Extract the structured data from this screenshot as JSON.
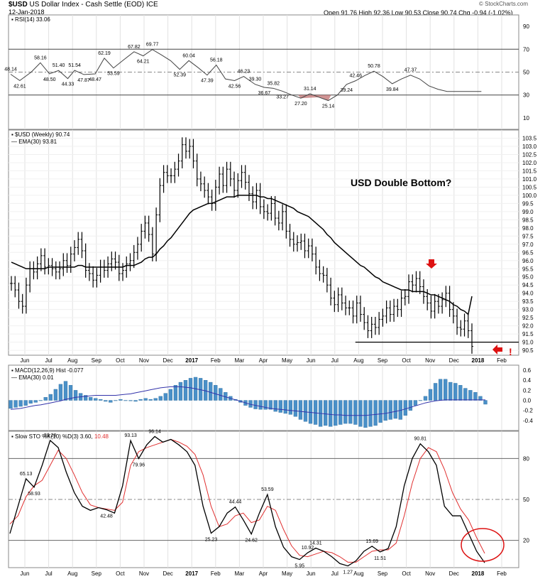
{
  "header": {
    "symbol": "$USD",
    "desc": "US Dollar Index - Cash Settle (EOD)",
    "exchange": "ICE",
    "date": "12-Jan-2018",
    "quote": "Open 91.76  High 92.36  Low 90.53  Close 90.74  Chg -0.94 (-1.02%)",
    "brand": "© StockCharts.com"
  },
  "panels": {
    "rsi_label": "RSI(14) 33.06",
    "price_label": "$USD (Weekly) 90.74",
    "ema_label": "EMA(30) 93.81",
    "macd_label": "MACD(12,26,9) Hist -0.077",
    "macd_ema_label": "EMA(30) 0.01",
    "sto_label_a": "Slow STO %K(10) %D(3) 3.60,",
    "sto_label_b": "10.48"
  },
  "annotations": {
    "double_bottom": "USD Double Bottom?",
    "exclaim": "!"
  },
  "colors": {
    "price_bar": "#000000",
    "ema": "#000000",
    "macd_hist": "#4a90c8",
    "macd_line": "#3333aa",
    "sto_k": "#000000",
    "sto_d": "#e03030",
    "rsi_oversold_fill": "#c07070",
    "arrow": "#dd1111",
    "circle": "#dd1111"
  },
  "chart_data": [
    {
      "type": "line",
      "title": "RSI(14) 33.06",
      "ylim": [
        0,
        100
      ],
      "y_ticks": [
        10,
        30,
        50,
        70,
        90
      ],
      "x": [
        0,
        4,
        9,
        13,
        17,
        21,
        25,
        28,
        32,
        37,
        41,
        45,
        49,
        54,
        58,
        62,
        66,
        70,
        74,
        78,
        82,
        86,
        90,
        94,
        98,
        102,
        107,
        111,
        115,
        119,
        123,
        127,
        131,
        135,
        139,
        143,
        147,
        151,
        155,
        159,
        163,
        167,
        171,
        175,
        179,
        183,
        187,
        191,
        195,
        199,
        203,
        206
      ],
      "values": [
        48.14,
        42.61,
        50,
        58.16,
        48.5,
        51.4,
        44.33,
        51.54,
        47.87,
        48.47,
        62.19,
        53.59,
        60,
        67.82,
        64.21,
        69.77,
        65,
        60,
        52.39,
        60.04,
        54,
        47.39,
        56.18,
        44,
        42.56,
        46.23,
        39.3,
        36.67,
        35.82,
        33.27,
        30,
        27.2,
        31.14,
        28,
        25.14,
        30,
        39.24,
        42.46,
        47,
        50.78,
        46,
        39.84,
        44,
        47.37,
        44,
        38,
        35,
        33.06,
        33.06,
        33.06,
        33.06,
        33.06
      ],
      "point_labels": [
        {
          "i": 0,
          "text": "48.14",
          "pos": "above"
        },
        {
          "i": 1,
          "text": "42.61",
          "pos": "below"
        },
        {
          "i": 3,
          "text": "58.16",
          "pos": "above"
        },
        {
          "i": 4,
          "text": "48.50",
          "pos": "below"
        },
        {
          "i": 5,
          "text": "51.40",
          "pos": "above"
        },
        {
          "i": 6,
          "text": "44.33",
          "pos": "below"
        },
        {
          "i": 7,
          "text": "51.54",
          "pos": "above"
        },
        {
          "i": 8,
          "text": "47.87",
          "pos": "below"
        },
        {
          "i": 9,
          "text": "48.47",
          "pos": "below"
        },
        {
          "i": 10,
          "text": "62.19",
          "pos": "above"
        },
        {
          "i": 11,
          "text": "53.59",
          "pos": "below"
        },
        {
          "i": 13,
          "text": "67.82",
          "pos": "above"
        },
        {
          "i": 14,
          "text": "64.21",
          "pos": "below"
        },
        {
          "i": 15,
          "text": "69.77",
          "pos": "above"
        },
        {
          "i": 18,
          "text": "52.39",
          "pos": "below"
        },
        {
          "i": 19,
          "text": "60.04",
          "pos": "above"
        },
        {
          "i": 21,
          "text": "47.39",
          "pos": "below"
        },
        {
          "i": 22,
          "text": "56.18",
          "pos": "above"
        },
        {
          "i": 24,
          "text": "42.56",
          "pos": "below"
        },
        {
          "i": 25,
          "text": "46.23",
          "pos": "above"
        },
        {
          "i": 26,
          "text": "39.30",
          "pos": "above"
        },
        {
          "i": 27,
          "text": "36.67",
          "pos": "below"
        },
        {
          "i": 28,
          "text": "35.82",
          "pos": "above"
        },
        {
          "i": 29,
          "text": "33.27",
          "pos": "below"
        },
        {
          "i": 31,
          "text": "27.20",
          "pos": "below"
        },
        {
          "i": 32,
          "text": "31.14",
          "pos": "above"
        },
        {
          "i": 34,
          "text": "25.14",
          "pos": "below"
        },
        {
          "i": 36,
          "text": "39.24",
          "pos": "below"
        },
        {
          "i": 37,
          "text": "42.46",
          "pos": "above"
        },
        {
          "i": 39,
          "text": "50.78",
          "pos": "above"
        },
        {
          "i": 41,
          "text": "39.84",
          "pos": "below"
        },
        {
          "i": 43,
          "text": "47.37",
          "pos": "above"
        }
      ]
    },
    {
      "type": "bar",
      "title": "$USD (Weekly) 90.74",
      "ylim": [
        90.2,
        104.0
      ],
      "y_ticks": [
        90.5,
        91.0,
        91.5,
        92.0,
        92.5,
        93.0,
        93.5,
        94.0,
        94.5,
        95.0,
        95.5,
        96.0,
        96.5,
        97.0,
        97.5,
        98.0,
        98.5,
        99.0,
        99.5,
        100.0,
        100.5,
        101.0,
        101.5,
        102.0,
        102.5,
        103.0,
        103.5
      ],
      "x_labels": [
        "Jun",
        "Jul",
        "Aug",
        "Sep",
        "Oct",
        "Nov",
        "Dec",
        "2017",
        "Feb",
        "Mar",
        "Apr",
        "May",
        "Jun",
        "Jul",
        "Aug",
        "Sep",
        "Oct",
        "Nov",
        "Dec",
        "2018",
        "Feb"
      ],
      "ohlc_close": [
        94.6,
        94.2,
        93.5,
        93.2,
        94.5,
        95.5,
        95.3,
        95.8,
        96.3,
        95.6,
        95.7,
        95.5,
        95.3,
        95.5,
        96.0,
        95.7,
        96.4,
        96.8,
        97.3,
        96.6,
        95.4,
        95.2,
        94.8,
        95.1,
        95.6,
        95.4,
        95.8,
        96.1,
        95.9,
        95.2,
        95.4,
        95.8,
        96.0,
        96.5,
        97.0,
        97.8,
        98.3,
        97.6,
        96.4,
        98.8,
        100.6,
        101.4,
        101.2,
        101.2,
        101.6,
        102.1,
        103.1,
        102.7,
        103.0,
        102.1,
        101.0,
        100.7,
        100.3,
        99.9,
        99.5,
        100.5,
        101.3,
        100.6,
        101.6,
        101.0,
        100.3,
        100.9,
        101.4,
        100.8,
        100.1,
        99.6,
        100.3,
        99.3,
        99.0,
        98.9,
        99.5,
        98.6,
        98.3,
        99.0,
        97.8,
        97.3,
        97.0,
        97.1,
        97.2,
        96.6,
        96.9,
        96.4,
        95.6,
        95.2,
        95.1,
        94.5,
        93.7,
        93.3,
        93.9,
        93.4,
        93.1,
        93.1,
        92.6,
        93.4,
        92.7,
        92.2,
        91.7,
        92.1,
        91.9,
        92.4,
        92.6,
        93.1,
        92.7,
        93.2,
        93.0,
        93.7,
        93.8,
        94.7,
        94.5,
        94.9,
        94.4,
        93.8,
        93.4,
        92.9,
        93.5,
        93.2,
        93.6,
        94.0,
        93.0,
        92.6,
        91.9,
        91.8,
        92.3,
        91.7,
        90.74
      ],
      "ema30": [
        95.9,
        95.8,
        95.7,
        95.6,
        95.5,
        95.5,
        95.5,
        95.5,
        95.5,
        95.5,
        95.6,
        95.6,
        95.6,
        95.6,
        95.6,
        95.6,
        95.6,
        95.6,
        95.7,
        95.7,
        95.6,
        95.6,
        95.6,
        95.6,
        95.6,
        95.6,
        95.6,
        95.6,
        95.6,
        95.6,
        95.6,
        95.7,
        95.7,
        95.7,
        95.8,
        95.9,
        96.1,
        96.2,
        96.2,
        96.4,
        96.7,
        96.9,
        97.2,
        97.4,
        97.7,
        98.0,
        98.3,
        98.6,
        98.9,
        99.1,
        99.2,
        99.3,
        99.4,
        99.5,
        99.5,
        99.6,
        99.7,
        99.8,
        99.9,
        99.9,
        99.9,
        100.0,
        100.0,
        100.0,
        100.0,
        100.0,
        100.0,
        99.9,
        99.9,
        99.8,
        99.8,
        99.7,
        99.6,
        99.5,
        99.4,
        99.3,
        99.2,
        99.0,
        98.9,
        98.8,
        98.7,
        98.5,
        98.3,
        98.1,
        97.9,
        97.6,
        97.4,
        97.1,
        96.9,
        96.7,
        96.5,
        96.3,
        96.1,
        95.9,
        95.7,
        95.6,
        95.4,
        95.2,
        95.0,
        94.9,
        94.7,
        94.6,
        94.5,
        94.4,
        94.3,
        94.2,
        94.2,
        94.2,
        94.1,
        94.1,
        94.1,
        94.1,
        94.0,
        93.9,
        93.9,
        93.8,
        93.7,
        93.6,
        93.5,
        93.3,
        93.2,
        93.0,
        92.9,
        92.7,
        93.81
      ]
    },
    {
      "type": "bar",
      "title": "MACD(12,26,9) Hist -0.077",
      "ylim": [
        -0.6,
        0.7
      ],
      "y_ticks": [
        -0.4,
        -0.2,
        0.0,
        0.2,
        0.4,
        0.6
      ],
      "hist": [
        -0.16,
        -0.14,
        -0.12,
        -0.1,
        -0.06,
        -0.04,
        0.0,
        0.06,
        0.12,
        0.22,
        0.32,
        0.38,
        0.3,
        0.2,
        0.14,
        0.1,
        0.06,
        0.04,
        0.02,
        -0.02,
        -0.04,
        0.0,
        0.02,
        0.0,
        -0.01,
        -0.02,
        0.02,
        0.04,
        0.02,
        0.04,
        0.08,
        0.14,
        0.22,
        0.3,
        0.36,
        0.4,
        0.44,
        0.46,
        0.44,
        0.4,
        0.36,
        0.3,
        0.24,
        0.16,
        0.08,
        0.02,
        -0.04,
        -0.1,
        -0.14,
        -0.17,
        -0.18,
        -0.18,
        -0.18,
        -0.22,
        -0.24,
        -0.26,
        -0.28,
        -0.32,
        -0.38,
        -0.42,
        -0.46,
        -0.48,
        -0.52,
        -0.5,
        -0.52,
        -0.5,
        -0.48,
        -0.46,
        -0.46,
        -0.48,
        -0.52,
        -0.54,
        -0.52,
        -0.5,
        -0.44,
        -0.4,
        -0.38,
        -0.36,
        -0.38,
        -0.3,
        -0.2,
        -0.1,
        0.0,
        0.08,
        0.22,
        0.34,
        0.42,
        0.42,
        0.36,
        0.34,
        0.3,
        0.24,
        0.2,
        0.16,
        0.08,
        -0.077
      ],
      "ema30": [
        -0.18,
        -0.17,
        -0.16,
        -0.14,
        -0.12,
        -0.1,
        -0.09,
        -0.07,
        -0.05,
        -0.03,
        -0.01,
        0.02,
        0.04,
        0.06,
        0.07,
        0.08,
        0.09,
        0.1,
        0.1,
        0.1,
        0.1,
        0.1,
        0.11,
        0.12,
        0.13,
        0.15,
        0.17,
        0.19,
        0.21,
        0.23,
        0.25,
        0.26,
        0.27,
        0.27,
        0.27,
        0.26,
        0.25,
        0.23,
        0.21,
        0.19,
        0.16,
        0.13,
        0.1,
        0.07,
        0.04,
        0.01,
        -0.02,
        -0.05,
        -0.08,
        -0.1,
        -0.12,
        -0.14,
        -0.16,
        -0.17,
        -0.18,
        -0.19,
        -0.2,
        -0.21,
        -0.22,
        -0.23,
        -0.24,
        -0.25,
        -0.26,
        -0.27,
        -0.28,
        -0.29,
        -0.29,
        -0.3,
        -0.3,
        -0.3,
        -0.3,
        -0.3,
        -0.29,
        -0.28,
        -0.27,
        -0.26,
        -0.24,
        -0.22,
        -0.2,
        -0.17,
        -0.14,
        -0.11,
        -0.08,
        -0.05,
        -0.03,
        -0.01,
        0.0,
        0.01,
        0.01,
        0.01,
        0.01,
        0.01,
        0.01,
        0.01,
        0.01,
        0.01
      ]
    },
    {
      "type": "line",
      "title": "Slow STO %K(10) %D(3) 3.60, 10.48",
      "ylim": [
        0,
        100
      ],
      "y_ticks": [
        20,
        50,
        80
      ],
      "k": [
        25,
        45,
        65.13,
        58.93,
        75,
        93.28,
        88,
        70,
        55,
        45,
        42,
        44,
        42.48,
        40,
        60,
        93.13,
        79.96,
        90,
        96.14,
        92,
        94,
        90,
        85,
        75,
        45,
        25.23,
        30,
        40,
        44.44,
        35,
        24.62,
        40,
        53.59,
        30,
        15,
        8,
        5.95,
        10.92,
        14.31,
        12,
        8,
        3,
        1.27,
        5,
        12,
        15.69,
        11.51,
        14,
        30,
        60,
        80,
        90.81,
        85,
        75,
        45,
        38,
        38,
        25,
        12,
        3.6
      ],
      "d": [
        32,
        38,
        52,
        60,
        64,
        75,
        86,
        80,
        68,
        55,
        46,
        44,
        43,
        42,
        48,
        75,
        85,
        88,
        90,
        92,
        94,
        92,
        89,
        83,
        68,
        45,
        30,
        32,
        38,
        40,
        33,
        35,
        45,
        42,
        28,
        16,
        9,
        8,
        10,
        12,
        11,
        8,
        4,
        4,
        8,
        12,
        13,
        13,
        18,
        38,
        62,
        80,
        88,
        85,
        72,
        55,
        43,
        35,
        22,
        10.48
      ],
      "point_labels": [
        {
          "i": 2,
          "text": "65.13",
          "pos": "above"
        },
        {
          "i": 3,
          "text": "58.93",
          "pos": "below"
        },
        {
          "i": 5,
          "text": "93.28",
          "pos": "above"
        },
        {
          "i": 12,
          "text": "42.48",
          "pos": "below"
        },
        {
          "i": 15,
          "text": "93.13",
          "pos": "above"
        },
        {
          "i": 16,
          "text": "79.96",
          "pos": "below"
        },
        {
          "i": 18,
          "text": "96.14",
          "pos": "above"
        },
        {
          "i": 25,
          "text": "25.23",
          "pos": "below"
        },
        {
          "i": 28,
          "text": "44.44",
          "pos": "above"
        },
        {
          "i": 30,
          "text": "24.62",
          "pos": "below"
        },
        {
          "i": 32,
          "text": "53.59",
          "pos": "above"
        },
        {
          "i": 36,
          "text": "5.95",
          "pos": "below"
        },
        {
          "i": 37,
          "text": "10.92",
          "pos": "above"
        },
        {
          "i": 38,
          "text": "14.31",
          "pos": "above"
        },
        {
          "i": 42,
          "text": "1.27",
          "pos": "below"
        },
        {
          "i": 45,
          "text": "15.69",
          "pos": "above"
        },
        {
          "i": 46,
          "text": "11.51",
          "pos": "below"
        },
        {
          "i": 51,
          "text": "90.81",
          "pos": "above"
        }
      ]
    }
  ]
}
